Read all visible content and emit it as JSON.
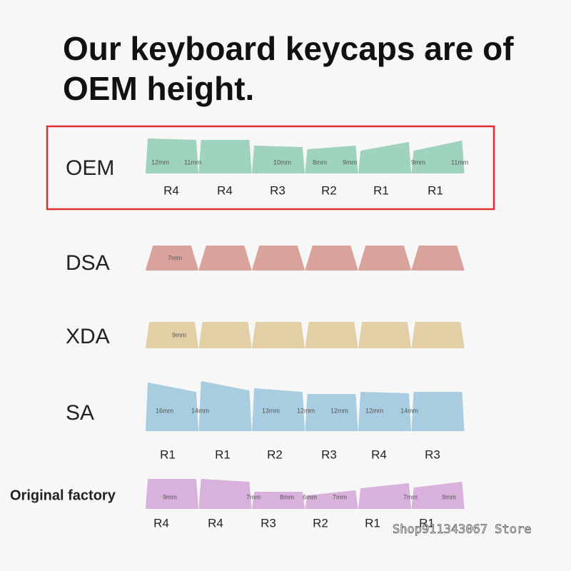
{
  "title_lines": [
    "Our keyboard keycaps are of",
    "OEM height."
  ],
  "profiles": [
    {
      "name": "OEM",
      "color": "#9fd3bd",
      "dims": [
        "12mm",
        "11mm",
        "10mm",
        "8mm",
        "9mm",
        "9mm",
        "11mm"
      ],
      "rows": [
        "R4",
        "R4",
        "R3",
        "R2",
        "R1",
        "R1"
      ]
    },
    {
      "name": "DSA",
      "color": "#d9a29a",
      "dims": [
        "7mm"
      ]
    },
    {
      "name": "XDA",
      "color": "#e3cfa6",
      "dims": [
        "9mm"
      ]
    },
    {
      "name": "SA",
      "color": "#a9cde0",
      "dims": [
        "16mm",
        "14mm",
        "13mm",
        "12mm",
        "12mm",
        "12mm",
        "14mm"
      ],
      "rows": [
        "R1",
        "R1",
        "R2",
        "R3",
        "R4",
        "R3"
      ]
    },
    {
      "name": "Original factory",
      "color": "#d8b1dc",
      "dims": [
        "9mm",
        "7mm",
        "8mm",
        "6mm",
        "7mm",
        "7mm",
        "9mm"
      ],
      "rows": [
        "R4",
        "R4",
        "R3",
        "R2",
        "R1",
        "R1"
      ]
    }
  ],
  "watermark": "Shop911343067 Store"
}
